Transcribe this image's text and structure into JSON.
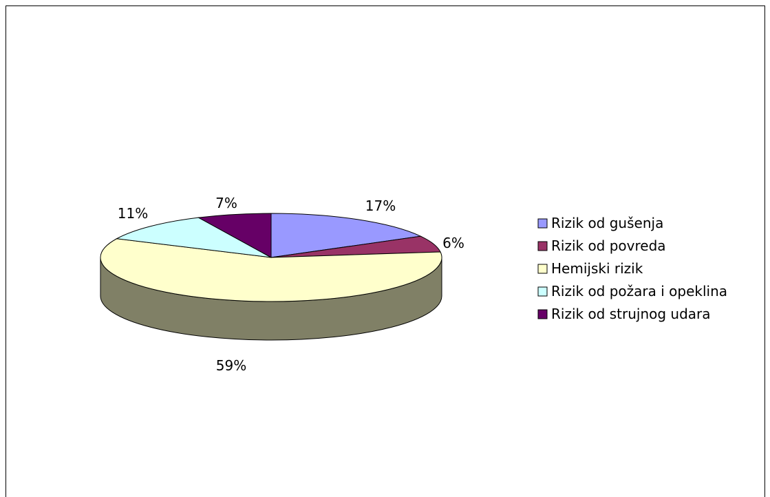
{
  "chart_data": {
    "type": "pie",
    "title": "",
    "legend_position": "right",
    "slices": [
      {
        "label": "Rizik od gušenja",
        "value": 17,
        "display": "17%",
        "color": "#9999ff",
        "side_color": "#6b6bb3"
      },
      {
        "label": "Rizik od povreda",
        "value": 6,
        "display": "6%",
        "color": "#993366",
        "side_color": "#6b2447"
      },
      {
        "label": "Hemijski rizik",
        "value": 59,
        "display": "59%",
        "color": "#ffffcc",
        "side_color": "#808066"
      },
      {
        "label": "Rizik od požara i opeklina",
        "value": 11,
        "display": "11%",
        "color": "#ccffff",
        "side_color": "#8fb3b3"
      },
      {
        "label": "Rizik od strujnog udara",
        "value": 7,
        "display": "7%",
        "color": "#660066",
        "side_color": "#470047"
      }
    ]
  }
}
